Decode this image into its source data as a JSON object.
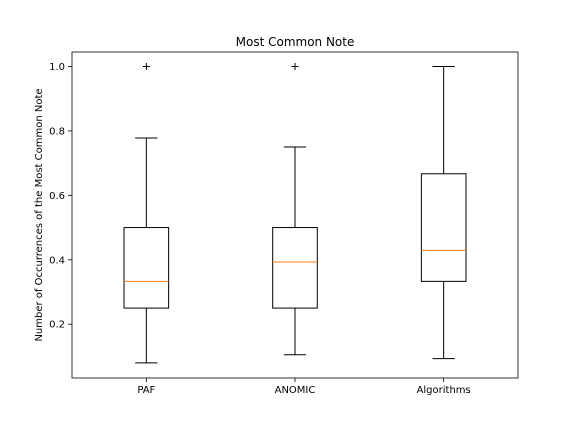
{
  "chart_data": {
    "type": "box",
    "title": "Most Common Note",
    "xlabel": "",
    "ylabel": "Number of Occurrences of the Most Common Note",
    "categories": [
      "PAF",
      "ANOMIC",
      "Algorithms"
    ],
    "ylim": [
      0.033,
      1.045
    ],
    "yticks": [
      0.2,
      0.4,
      0.6,
      0.8,
      1.0
    ],
    "ytick_labels": [
      "0.2",
      "0.4",
      "0.6",
      "0.8",
      "1.0"
    ],
    "boxes": [
      {
        "name": "PAF",
        "whislo": 0.08,
        "q1": 0.25,
        "med": 0.333,
        "q3": 0.5,
        "whishi": 0.778,
        "fliers": [
          1.0
        ]
      },
      {
        "name": "ANOMIC",
        "whislo": 0.105,
        "q1": 0.25,
        "med": 0.393,
        "q3": 0.5,
        "whishi": 0.75,
        "fliers": [
          1.0
        ]
      },
      {
        "name": "Algorithms",
        "whislo": 0.093,
        "q1": 0.333,
        "med": 0.429,
        "q3": 0.667,
        "whishi": 1.0,
        "fliers": []
      }
    ],
    "colors": {
      "box": "#000000",
      "median": "#ff7f0e",
      "flier": "#000000"
    },
    "grid": false
  }
}
